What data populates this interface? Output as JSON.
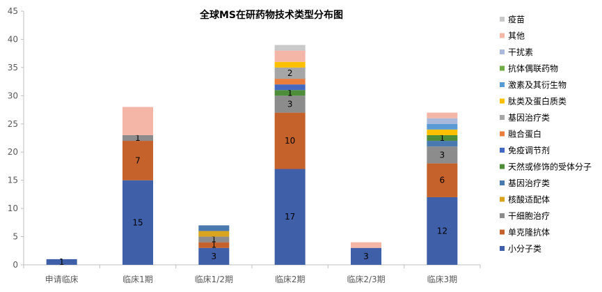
{
  "chart_data": {
    "type": "bar",
    "stacked": true,
    "title": "全球MS在研药物技术类型分布图",
    "xlabel": "",
    "ylabel": "",
    "ylim": [
      0,
      45
    ],
    "yticks": [
      0,
      5,
      10,
      15,
      20,
      25,
      30,
      35,
      40,
      45
    ],
    "grid": false,
    "legend_position": "right",
    "categories": [
      "申请临床",
      "临床1期",
      "临床1/2期",
      "临床2期",
      "临床2/3期",
      "临床3期"
    ],
    "series": [
      {
        "name": "小分子类",
        "color": "#3F5FA8",
        "values": [
          1,
          15,
          3,
          17,
          3,
          12
        ],
        "labels": [
          "1",
          "15",
          "3",
          "17",
          "3",
          "12"
        ]
      },
      {
        "name": "单克隆抗体",
        "color": "#C5622B",
        "values": [
          0,
          7,
          1,
          10,
          0,
          6
        ],
        "labels": [
          "",
          "7",
          "1",
          "10",
          "",
          "6"
        ]
      },
      {
        "name": "干细胞治疗",
        "color": "#8C8C8C",
        "values": [
          0,
          1,
          1,
          3,
          0,
          3
        ],
        "labels": [
          "",
          "1",
          "1",
          "3",
          "",
          "3"
        ]
      },
      {
        "name": "核酸适配体",
        "color": "#D9A521",
        "values": [
          0,
          0,
          1,
          0,
          0,
          0
        ],
        "labels": [
          "",
          "",
          "",
          "",
          "",
          ""
        ]
      },
      {
        "name": "基因治疗类",
        "color": "#4A79B0",
        "values": [
          0,
          0,
          1,
          0,
          0,
          1
        ],
        "labels": [
          "",
          "",
          "",
          "",
          "",
          ""
        ]
      },
      {
        "name": "天然或修饰的受体分子",
        "color": "#4E8D3A",
        "values": [
          0,
          0,
          0,
          1,
          0,
          1
        ],
        "labels": [
          "",
          "",
          "",
          "1",
          "",
          "1"
        ]
      },
      {
        "name": "免疫调节剂",
        "color": "#4469C0",
        "values": [
          0,
          0,
          0,
          1,
          0,
          0
        ],
        "labels": [
          "",
          "",
          "",
          "",
          "",
          ""
        ]
      },
      {
        "name": "融合蛋白",
        "color": "#E87D3E",
        "values": [
          0,
          0,
          0,
          1,
          0,
          0
        ],
        "labels": [
          "",
          "",
          "",
          "",
          "",
          ""
        ]
      },
      {
        "name": "基因治疗类",
        "color": "#A6A6A6",
        "values": [
          0,
          0,
          0,
          2,
          0,
          0
        ],
        "labels": [
          "",
          "",
          "",
          "2",
          "",
          ""
        ]
      },
      {
        "name": "肽类及蛋白质类",
        "color": "#FFC000",
        "values": [
          0,
          0,
          0,
          1,
          0,
          1
        ],
        "labels": [
          "",
          "",
          "",
          "",
          "",
          ""
        ]
      },
      {
        "name": "激素及其衍生物",
        "color": "#5B9BD5",
        "values": [
          0,
          0,
          0,
          0,
          0,
          1
        ],
        "labels": [
          "",
          "",
          "",
          "",
          "",
          ""
        ]
      },
      {
        "name": "抗体偶联药物",
        "color": "#70AD47",
        "values": [
          0,
          0,
          0,
          0,
          0,
          0
        ],
        "labels": [
          "",
          "",
          "",
          "",
          "",
          ""
        ]
      },
      {
        "name": "干扰素",
        "color": "#A9B8DB",
        "values": [
          0,
          0,
          0,
          0,
          0,
          1
        ],
        "labels": [
          "",
          "",
          "",
          "",
          "",
          ""
        ]
      },
      {
        "name": "其他",
        "color": "#F4B6A6",
        "values": [
          0,
          5,
          0,
          2,
          1,
          1
        ],
        "labels": [
          "",
          "",
          "",
          "",
          "",
          ""
        ]
      },
      {
        "name": "疫苗",
        "color": "#C9C9C9",
        "values": [
          0,
          0,
          0,
          1,
          0,
          0
        ],
        "labels": [
          "",
          "",
          "",
          "",
          "",
          ""
        ]
      }
    ],
    "legend_order": [
      "疫苗",
      "其他",
      "干扰素",
      "抗体偶联药物",
      "激素及其衍生物",
      "肽类及蛋白质类",
      "基因治疗类",
      "融合蛋白",
      "免疫调节剂",
      "天然或修饰的受体分子",
      " 基因治疗类",
      "核酸适配体",
      "干细胞治疗",
      "单克隆抗体",
      "小分子类"
    ],
    "legend_series_index": [
      14,
      13,
      12,
      11,
      10,
      9,
      8,
      7,
      6,
      5,
      4,
      3,
      2,
      1,
      0
    ]
  }
}
